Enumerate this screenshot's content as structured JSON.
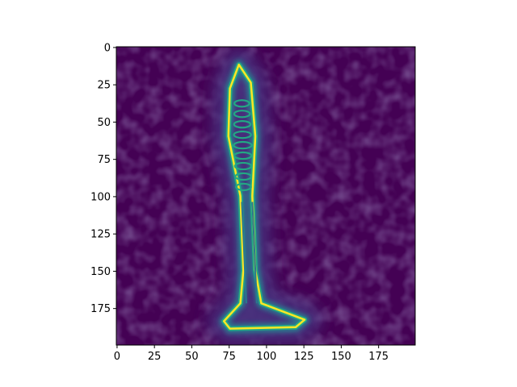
{
  "chart_data": {
    "type": "heatmap",
    "title": "",
    "xlabel": "",
    "ylabel": "",
    "colormap": "viridis",
    "xlim": [
      0,
      200
    ],
    "ylim": [
      200,
      0
    ],
    "image_size": [
      200,
      200
    ],
    "x_ticks": [
      0,
      25,
      50,
      75,
      100,
      125,
      150,
      175
    ],
    "y_ticks": [
      0,
      25,
      50,
      75,
      100,
      125,
      150,
      175
    ],
    "x_tick_labels": [
      "0",
      "25",
      "50",
      "75",
      "100",
      "125",
      "150",
      "175"
    ],
    "y_tick_labels": [
      "0",
      "25",
      "50",
      "75",
      "100",
      "125",
      "150",
      "175"
    ],
    "grid": false,
    "legend": "none",
    "content": "edge-magnitude image of a screw; bright outline along the screw edges, threaded section near the top, flared head at the bottom",
    "outline_polygon": [
      [
        82,
        12
      ],
      [
        90,
        24
      ],
      [
        93,
        60
      ],
      [
        91,
        100
      ],
      [
        93,
        150
      ],
      [
        97,
        172
      ],
      [
        126,
        183
      ],
      [
        120,
        188
      ],
      [
        76,
        189
      ],
      [
        72,
        184
      ],
      [
        83,
        172
      ],
      [
        85,
        150
      ],
      [
        83,
        100
      ],
      [
        75,
        60
      ],
      [
        76,
        28
      ]
    ],
    "thread_rows": [
      38,
      45,
      52,
      59,
      66,
      73,
      80,
      87,
      94
    ],
    "shaft_lines": [
      [
        [
          84,
          104
        ],
        [
          87,
          172
        ]
      ],
      [
        [
          91,
          104
        ],
        [
          94,
          172
        ]
      ]
    ],
    "colors": {
      "background": "#440154",
      "low": "#46307e",
      "mid": "#2a788e",
      "high": "#22a884",
      "peak": "#fde725",
      "frame": "#000000"
    }
  }
}
